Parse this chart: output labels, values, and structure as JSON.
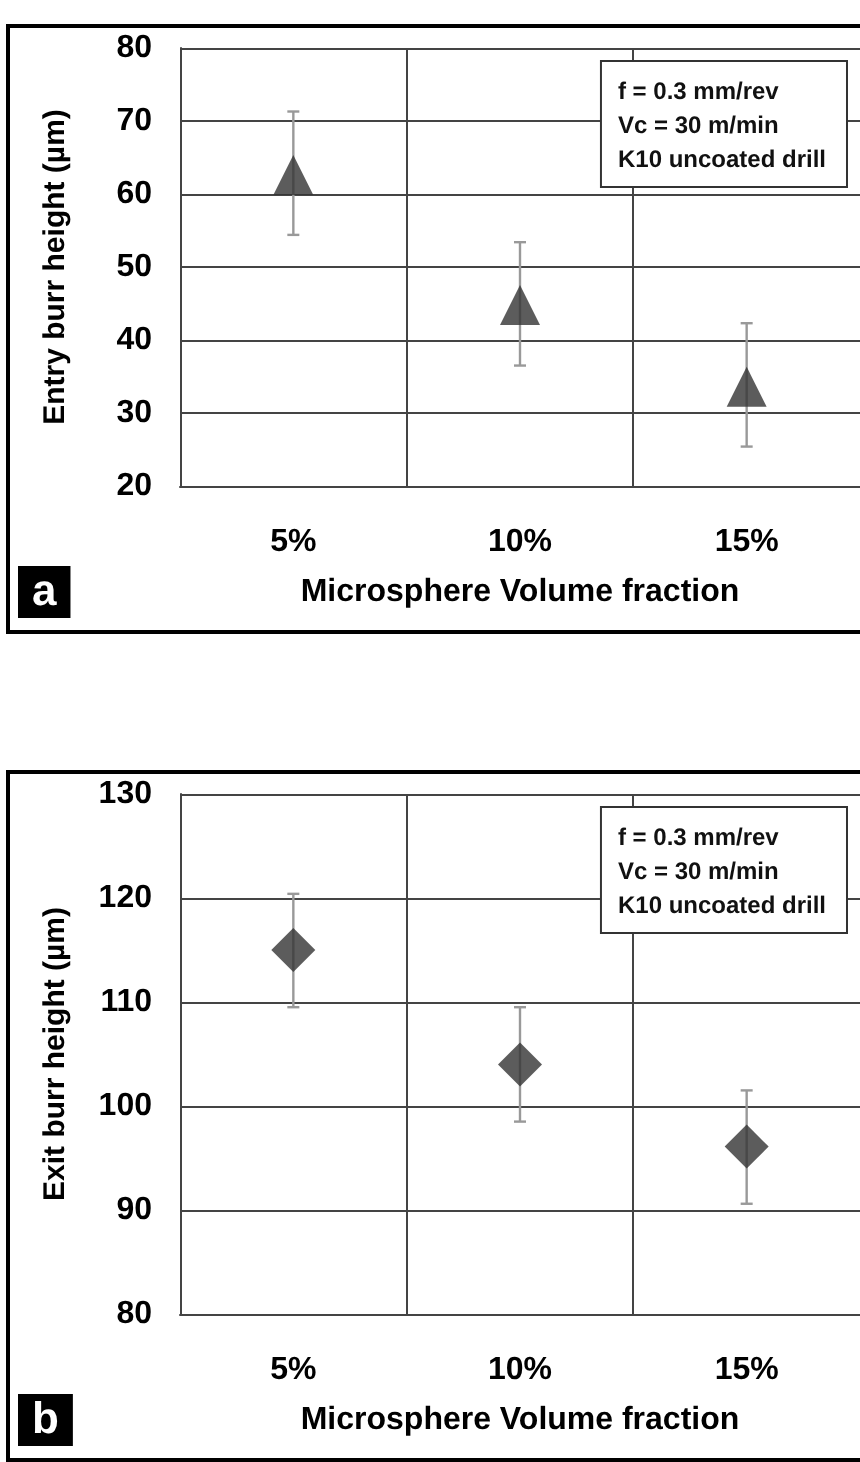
{
  "chart_data": [
    {
      "type": "scatter",
      "categories": [
        "5%",
        "10%",
        "15%"
      ],
      "xlabel": "Microsphere Volume fraction",
      "ylabel": "Entry burr height (µm)",
      "ylim": [
        20,
        80
      ],
      "yticks": [
        20,
        30,
        40,
        50,
        60,
        70,
        80
      ],
      "grid": true,
      "marker": "triangle",
      "series": [
        {
          "color": "#333333",
          "values": [
            62.6,
            44.8,
            33.6
          ],
          "errors": [
            [
              54.4,
              71.3
            ],
            [
              36.5,
              53.4
            ],
            [
              25.4,
              42.3
            ]
          ]
        }
      ],
      "annotations": [
        "f = 0.3 mm/rev",
        "Vc = 30 m/min",
        "K10 uncoated drill",
        "a"
      ]
    },
    {
      "type": "scatter",
      "categories": [
        "5%",
        "10%",
        "15%"
      ],
      "xlabel": "Microsphere Volume fraction",
      "ylabel": "Exit burr height (µm)",
      "ylim": [
        80,
        130
      ],
      "yticks": [
        80,
        90,
        100,
        110,
        120,
        130
      ],
      "grid": true,
      "marker": "diamond",
      "series": [
        {
          "color": "#333333",
          "values": [
            115.0,
            104.0,
            96.1
          ],
          "errors": [
            [
              109.5,
              120.4
            ],
            [
              98.5,
              109.5
            ],
            [
              90.6,
              101.5
            ]
          ]
        }
      ],
      "annotations": [
        "f = 0.3 mm/rev",
        "Vc = 30 m/min",
        "K10 uncoated drill",
        "b"
      ]
    }
  ]
}
